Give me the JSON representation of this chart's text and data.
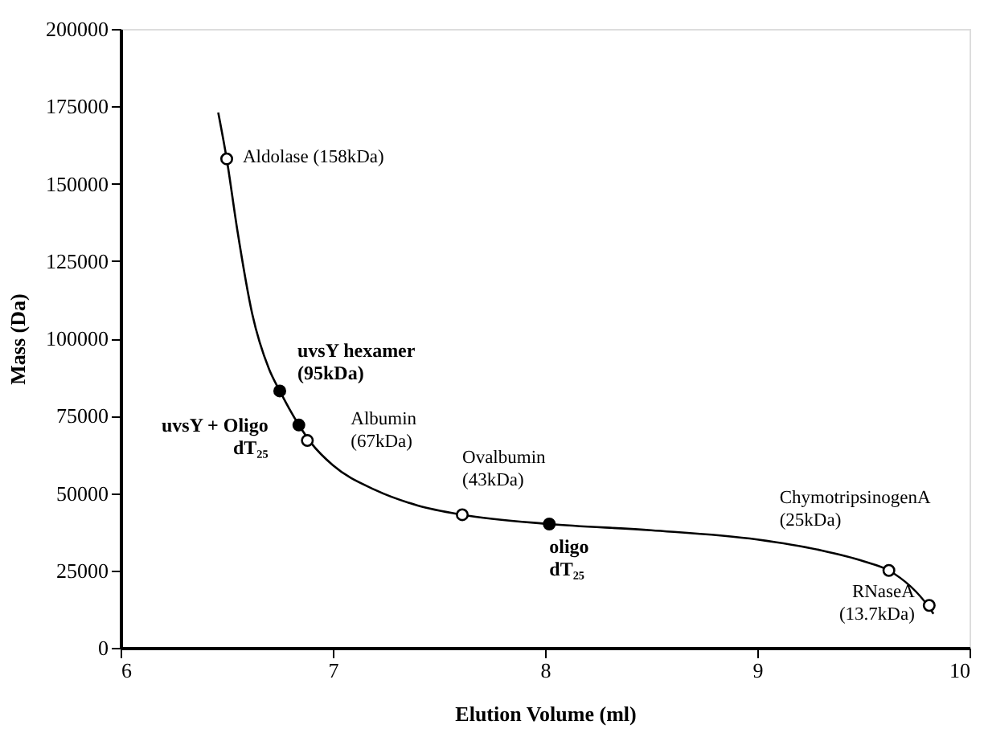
{
  "chart_data": {
    "type": "scatter",
    "xlabel": "Elution Volume (ml)",
    "ylabel": "Mass (Da)",
    "xlim": [
      6,
      10
    ],
    "xticks": [
      6,
      7,
      8,
      9,
      10
    ],
    "ylim": [
      0,
      200000
    ],
    "yticks": [
      0,
      25000,
      50000,
      75000,
      100000,
      125000,
      150000,
      175000,
      200000
    ],
    "grid": false,
    "series": [
      {
        "type": "line",
        "marker": "none",
        "line_style": "solid",
        "color": "#000000",
        "x": [
          6.46,
          6.5,
          6.55,
          6.62,
          6.7,
          6.75,
          6.84,
          6.9,
          7.0,
          7.2,
          7.4,
          7.61,
          8.02,
          8.5,
          9.0,
          9.3,
          9.5,
          9.62,
          9.81,
          9.83
        ],
        "values": [
          173000,
          158000,
          135000,
          108000,
          90000,
          83000,
          72000,
          66000,
          59000,
          51000,
          46000,
          43000,
          40000,
          38000,
          35000,
          31500,
          28000,
          25000,
          13000,
          11000
        ]
      },
      {
        "marker": "circle",
        "color": "#ffffff",
        "x": [
          6.5,
          6.88,
          7.61,
          9.62,
          9.81
        ],
        "values": [
          158000,
          67000,
          43000,
          25000,
          13700
        ]
      },
      {
        "marker": "circle",
        "color": "#000000",
        "x": [
          6.75,
          6.84,
          8.02
        ],
        "values": [
          83000,
          72000,
          40000
        ]
      }
    ],
    "annotations": [
      {
        "text": "Aldolase (158kDa)",
        "x": 6.5,
        "y": 158000
      },
      {
        "text": "uvsY hexamer\n(95kDa)",
        "x": 6.75,
        "y": 83000
      },
      {
        "text": "uvsY + Oligo\ndT₂₅",
        "x": 6.84,
        "y": 72000
      },
      {
        "text": "Albumin\n(67kDa)",
        "x": 6.88,
        "y": 67000
      },
      {
        "text": "Ovalbumin\n(43kDa)",
        "x": 7.61,
        "y": 43000
      },
      {
        "text": "oligo\ndT₂₅",
        "x": 8.02,
        "y": 40000
      },
      {
        "text": "ChymotripsinogenA\n(25kDa)",
        "x": 9.62,
        "y": 25000
      },
      {
        "text": "RNaseA\n(13.7kDa)",
        "x": 9.81,
        "y": 13700
      }
    ]
  }
}
